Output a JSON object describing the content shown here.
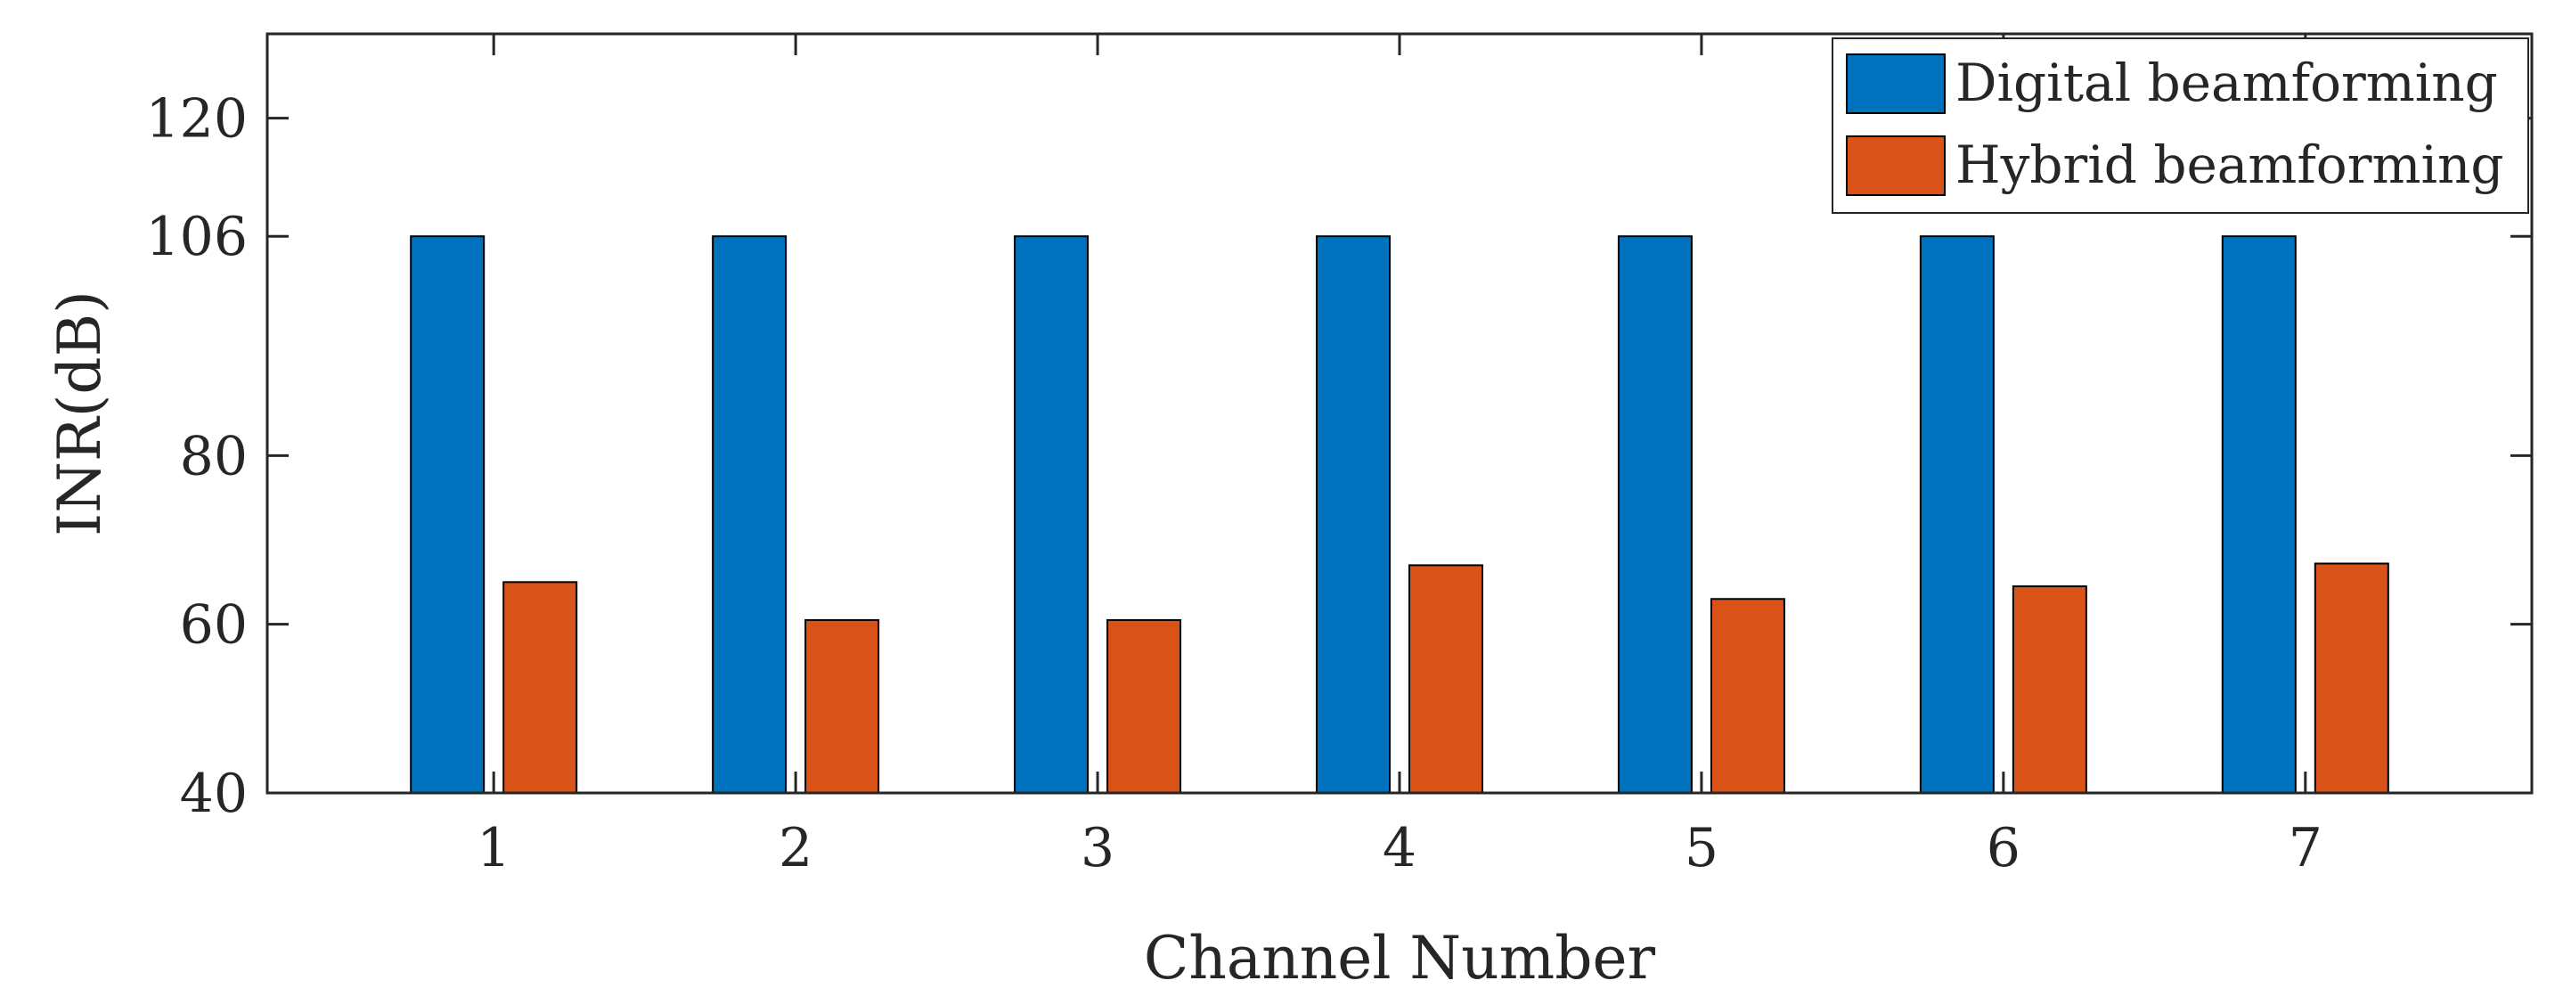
{
  "chart_data": {
    "type": "bar",
    "categories": [
      "1",
      "2",
      "3",
      "4",
      "5",
      "6",
      "7"
    ],
    "series": [
      {
        "name": "Digital beamforming",
        "color": "#0072BD",
        "values": [
          106,
          106,
          106,
          106,
          106,
          106,
          106
        ]
      },
      {
        "name": "Hybrid beamforming",
        "color": "#D95319",
        "values": [
          65,
          60.5,
          60.5,
          67,
          63,
          64.5,
          67.2
        ]
      }
    ],
    "title": "",
    "xlabel": "Channel Number",
    "ylabel": "INR(dB)",
    "ylim": [
      40,
      130
    ],
    "yticks": [
      40,
      60,
      80,
      106,
      120
    ],
    "grid": false,
    "legend": "top-right"
  }
}
